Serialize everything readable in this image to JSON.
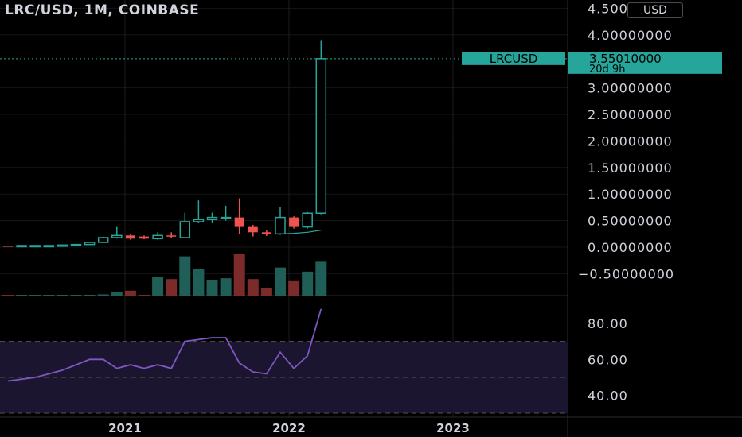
{
  "header": {
    "symbol": "LRC/USD",
    "interval": "1M",
    "exchange": "COINBASE",
    "currency_button": "USD"
  },
  "price_tag": {
    "symbol": "LRCUSD",
    "price": "3.55010000",
    "countdown": "20d 9h",
    "color": "#26a69a"
  },
  "colors": {
    "up": "#26a69a",
    "down": "#ef5350",
    "up_volume": "#1f5f57",
    "down_volume": "#7a2b2a",
    "rsi_line": "#7e57c2",
    "rsi_band": "#1b1530",
    "ma_line": "#26a69a"
  },
  "chart_data": [
    {
      "type": "candlestick",
      "title": "LRC/USD, 1M, COINBASE",
      "x_axis_labels": [
        "2021",
        "2022",
        "2023"
      ],
      "y_axis_ticks": [
        "4.50000000",
        "4.00000000",
        "3.00000000",
        "2.50000000",
        "2.00000000",
        "1.50000000",
        "1.00000000",
        "0.50000000",
        "0.00000000",
        "−0.50000000"
      ],
      "ylim": [
        -0.5,
        4.5
      ],
      "candles": [
        {
          "month": "2019-12",
          "open": 0.03,
          "high": 0.03,
          "low": 0.02,
          "close": 0.02
        },
        {
          "month": "2020-01",
          "open": 0.02,
          "high": 0.03,
          "low": 0.02,
          "close": 0.03
        },
        {
          "month": "2020-02",
          "open": 0.03,
          "high": 0.04,
          "low": 0.03,
          "close": 0.03
        },
        {
          "month": "2020-03",
          "open": 0.03,
          "high": 0.04,
          "low": 0.02,
          "close": 0.03
        },
        {
          "month": "2020-04",
          "open": 0.03,
          "high": 0.05,
          "low": 0.03,
          "close": 0.04
        },
        {
          "month": "2020-05",
          "open": 0.04,
          "high": 0.06,
          "low": 0.04,
          "close": 0.05
        },
        {
          "month": "2020-06",
          "open": 0.05,
          "high": 0.1,
          "low": 0.05,
          "close": 0.09
        },
        {
          "month": "2020-07",
          "open": 0.09,
          "high": 0.2,
          "low": 0.08,
          "close": 0.18
        },
        {
          "month": "2020-08",
          "open": 0.18,
          "high": 0.38,
          "low": 0.16,
          "close": 0.22
        },
        {
          "month": "2020-09",
          "open": 0.22,
          "high": 0.24,
          "low": 0.14,
          "close": 0.16
        },
        {
          "month": "2020-10",
          "open": 0.2,
          "high": 0.22,
          "low": 0.15,
          "close": 0.16
        },
        {
          "month": "2020-11",
          "open": 0.16,
          "high": 0.28,
          "low": 0.14,
          "close": 0.22
        },
        {
          "month": "2020-12",
          "open": 0.22,
          "high": 0.28,
          "low": 0.17,
          "close": 0.2
        },
        {
          "month": "2021-01",
          "open": 0.18,
          "high": 0.65,
          "low": 0.17,
          "close": 0.48
        },
        {
          "month": "2021-02",
          "open": 0.48,
          "high": 0.88,
          "low": 0.45,
          "close": 0.52
        },
        {
          "month": "2021-03",
          "open": 0.52,
          "high": 0.65,
          "low": 0.45,
          "close": 0.56
        },
        {
          "month": "2021-04",
          "open": 0.56,
          "high": 0.78,
          "low": 0.5,
          "close": 0.56
        },
        {
          "month": "2021-05",
          "open": 0.56,
          "high": 0.92,
          "low": 0.25,
          "close": 0.38
        },
        {
          "month": "2021-06",
          "open": 0.38,
          "high": 0.42,
          "low": 0.2,
          "close": 0.28
        },
        {
          "month": "2021-07",
          "open": 0.28,
          "high": 0.32,
          "low": 0.21,
          "close": 0.25
        },
        {
          "month": "2021-08",
          "open": 0.25,
          "high": 0.75,
          "low": 0.23,
          "close": 0.56
        },
        {
          "month": "2021-09",
          "open": 0.56,
          "high": 0.58,
          "low": 0.35,
          "close": 0.38
        },
        {
          "month": "2021-10",
          "open": 0.38,
          "high": 0.66,
          "low": 0.35,
          "close": 0.64
        },
        {
          "month": "2021-11",
          "open": 0.64,
          "high": 3.9,
          "low": 0.62,
          "close": 3.55
        }
      ],
      "moving_average_tail": [
        0.25,
        0.26,
        0.28,
        0.32
      ],
      "volume_relative": [
        0.01,
        0.01,
        0.01,
        0.01,
        0.01,
        0.01,
        0.02,
        0.03,
        0.08,
        0.12,
        0.02,
        0.45,
        0.4,
        0.95,
        0.65,
        0.38,
        0.42,
        1.0,
        0.4,
        0.18,
        0.68,
        0.35,
        0.58,
        0.82
      ],
      "grid": true
    },
    {
      "type": "line",
      "name": "RSI",
      "y_axis_ticks": [
        "80.00",
        "60.00",
        "40.00"
      ],
      "ylim": [
        30,
        90
      ],
      "band": [
        30,
        70
      ],
      "mid_line": 50,
      "values": [
        48,
        49,
        50,
        52,
        54,
        57,
        60,
        60,
        55,
        57,
        55,
        57,
        55,
        70,
        71,
        72,
        72,
        58,
        53,
        52,
        64,
        55,
        62,
        88
      ]
    }
  ]
}
